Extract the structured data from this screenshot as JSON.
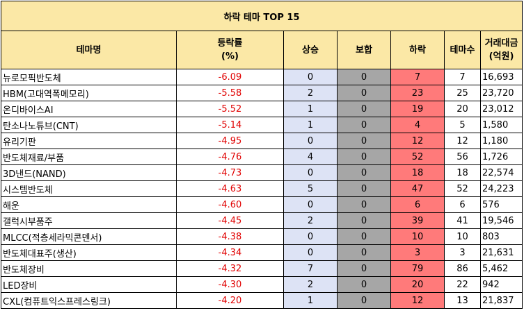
{
  "table": {
    "title": "하락 테마 TOP 15",
    "headers": {
      "name": "테마명",
      "rate_line1": "등락률",
      "rate_line2": "(%)",
      "up": "상승",
      "flat": "보합",
      "down": "하락",
      "count": "테마수",
      "volume_line1": "거래대금",
      "volume_line2": "(억원)"
    },
    "rows": [
      {
        "name": "뉴로모픽반도체",
        "rate": "-6.09",
        "up": "0",
        "flat": "0",
        "down": "7",
        "count": "7",
        "volume": "16,693"
      },
      {
        "name": "HBM(고대역폭메모리)",
        "rate": "-5.58",
        "up": "2",
        "flat": "0",
        "down": "23",
        "count": "25",
        "volume": "23,720"
      },
      {
        "name": "온디바이스AI",
        "rate": "-5.52",
        "up": "1",
        "flat": "0",
        "down": "19",
        "count": "20",
        "volume": "23,012"
      },
      {
        "name": "탄소나노튜브(CNT)",
        "rate": "-5.14",
        "up": "1",
        "flat": "0",
        "down": "4",
        "count": "5",
        "volume": "1,580"
      },
      {
        "name": "유리기판",
        "rate": "-4.95",
        "up": "0",
        "flat": "0",
        "down": "12",
        "count": "12",
        "volume": "1,180"
      },
      {
        "name": "반도체재료/부품",
        "rate": "-4.76",
        "up": "4",
        "flat": "0",
        "down": "52",
        "count": "56",
        "volume": "1,726"
      },
      {
        "name": "3D낸드(NAND)",
        "rate": "-4.73",
        "up": "0",
        "flat": "0",
        "down": "18",
        "count": "18",
        "volume": "22,574"
      },
      {
        "name": "시스템반도체",
        "rate": "-4.63",
        "up": "5",
        "flat": "0",
        "down": "47",
        "count": "52",
        "volume": "24,223"
      },
      {
        "name": "해운",
        "rate": "-4.60",
        "up": "0",
        "flat": "0",
        "down": "6",
        "count": "6",
        "volume": "576"
      },
      {
        "name": "갤럭시부품주",
        "rate": "-4.45",
        "up": "2",
        "flat": "0",
        "down": "39",
        "count": "41",
        "volume": "19,546"
      },
      {
        "name": "MLCC(적층세라믹콘덴서)",
        "rate": "-4.38",
        "up": "0",
        "flat": "0",
        "down": "10",
        "count": "10",
        "volume": "803"
      },
      {
        "name": "반도체대표주(생산)",
        "rate": "-4.34",
        "up": "0",
        "flat": "0",
        "down": "3",
        "count": "3",
        "volume": "21,631"
      },
      {
        "name": "반도체장비",
        "rate": "-4.32",
        "up": "7",
        "flat": "0",
        "down": "79",
        "count": "86",
        "volume": "5,462"
      },
      {
        "name": "LED장비",
        "rate": "-4.30",
        "up": "2",
        "flat": "0",
        "down": "20",
        "count": "22",
        "volume": "942"
      },
      {
        "name": "CXL(컴퓨트익스프레스링크)",
        "rate": "-4.20",
        "up": "1",
        "flat": "0",
        "down": "12",
        "count": "13",
        "volume": "21,837"
      }
    ]
  }
}
